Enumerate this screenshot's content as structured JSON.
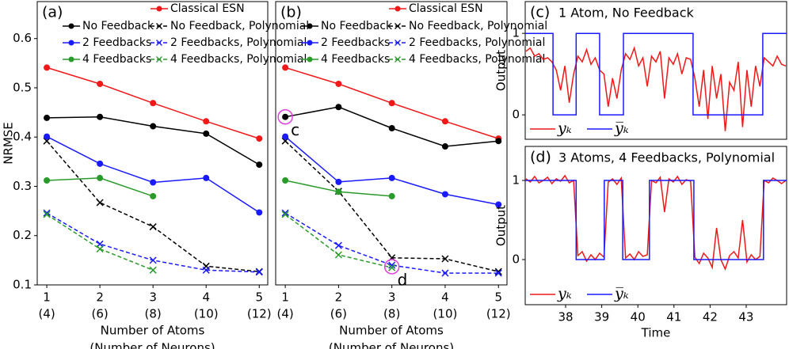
{
  "chart_data": [
    {
      "type": "line",
      "label": "(a)",
      "ylabel": "NRMSE",
      "xlabel": [
        "Number of Atoms",
        "(Number of Neurons)"
      ],
      "x": [
        1,
        2,
        3,
        4,
        5
      ],
      "xlim": [
        0.82,
        5.16
      ],
      "ylim": [
        0.1,
        0.675
      ],
      "xticks": [
        1,
        2,
        3,
        4,
        5
      ],
      "xtick_sublabels": [
        "(4)",
        "(6)",
        "(8)",
        "(10)",
        "(12)"
      ],
      "yticks": [
        0.1,
        0.2,
        0.3,
        0.4,
        0.5,
        0.6
      ],
      "legend": "top-two-column",
      "series": [
        {
          "name": "Classical ESN",
          "color": "#f01818",
          "dash": false,
          "marker": "o",
          "values": [
            0.541,
            0.508,
            0.469,
            0.432,
            0.397
          ]
        },
        {
          "name": "No Feedback",
          "color": "#000000",
          "dash": false,
          "marker": "o",
          "values": [
            0.439,
            0.441,
            0.422,
            0.407,
            0.344
          ]
        },
        {
          "name": "No Feedback, Polynomial",
          "color": "#000000",
          "dash": true,
          "marker": "x",
          "values": [
            0.392,
            0.267,
            0.218,
            0.138,
            0.127
          ]
        },
        {
          "name": "2 Feedbacks",
          "color": "#1a1aff",
          "dash": false,
          "marker": "o",
          "values": [
            0.401,
            0.346,
            0.308,
            0.317,
            0.247
          ]
        },
        {
          "name": "2 Feedbacks, Polynomial",
          "color": "#1a1aff",
          "dash": true,
          "marker": "x",
          "values": [
            0.246,
            0.183,
            0.15,
            0.13,
            0.126
          ]
        },
        {
          "name": "4 Feedbacks",
          "color": "#2a9a2a",
          "dash": false,
          "marker": "o",
          "values": [
            0.312,
            0.317,
            0.28,
            null,
            null
          ]
        },
        {
          "name": "4 Feedbacks, Polynomial",
          "color": "#2a9a2a",
          "dash": true,
          "marker": "x",
          "values": [
            0.243,
            0.173,
            0.13,
            null,
            null
          ]
        }
      ]
    },
    {
      "type": "line",
      "label": "(b)",
      "xlabel": [
        "Number of Atoms",
        "(Number of Neurons)"
      ],
      "x": [
        1,
        2,
        3,
        4,
        5
      ],
      "xlim": [
        0.82,
        5.16
      ],
      "ylim": [
        0.1,
        0.675
      ],
      "xticks": [
        1,
        2,
        3,
        4,
        5
      ],
      "xtick_sublabels": [
        "(4)",
        "(6)",
        "(8)",
        "(10)",
        "(12)"
      ],
      "legend": "top-two-column",
      "annotations": [
        {
          "text": "c",
          "x": 1,
          "y": 0.441,
          "color": "#e040e0"
        },
        {
          "text": "d",
          "x": 3,
          "y": 0.137,
          "color": "#e040e0"
        }
      ],
      "series": [
        {
          "name": "Classical ESN",
          "color": "#f01818",
          "dash": false,
          "marker": "o",
          "values": [
            0.541,
            0.508,
            0.469,
            0.432,
            0.397
          ]
        },
        {
          "name": "No Feedback",
          "color": "#000000",
          "dash": false,
          "marker": "o",
          "values": [
            0.441,
            0.461,
            0.418,
            0.381,
            0.392
          ]
        },
        {
          "name": "No Feedback, Polynomial",
          "color": "#000000",
          "dash": true,
          "marker": "x",
          "values": [
            0.392,
            0.29,
            0.155,
            0.153,
            0.127
          ]
        },
        {
          "name": "2 Feedbacks",
          "color": "#1a1aff",
          "dash": false,
          "marker": "o",
          "values": [
            0.401,
            0.309,
            0.317,
            0.284,
            0.263
          ]
        },
        {
          "name": "2 Feedbacks, Polynomial",
          "color": "#1a1aff",
          "dash": true,
          "marker": "x",
          "values": [
            0.246,
            0.18,
            0.14,
            0.124,
            0.124
          ]
        },
        {
          "name": "4 Feedbacks",
          "color": "#2a9a2a",
          "dash": false,
          "marker": "o",
          "values": [
            0.312,
            0.289,
            0.28,
            null,
            null
          ]
        },
        {
          "name": "4 Feedbacks, Polynomial",
          "color": "#2a9a2a",
          "dash": true,
          "marker": "x",
          "values": [
            0.243,
            0.161,
            0.135,
            null,
            null
          ]
        }
      ]
    },
    {
      "type": "line",
      "label": "(c)",
      "title": "1 Atom, No Feedback",
      "ylabel": "Output",
      "xlim": [
        36.88,
        44.12
      ],
      "ylim": [
        -0.3,
        1.39
      ],
      "yticks": [
        0,
        1
      ],
      "legend": "lower-left-row",
      "series": [
        {
          "name": "yₖ",
          "color": "#f01818",
          "dash": false,
          "x": [
            36.9,
            37.02,
            37.14,
            37.26,
            37.38,
            37.5,
            37.62,
            37.74,
            37.86,
            37.98,
            38.1,
            38.22,
            38.34,
            38.46,
            38.58,
            38.7,
            38.82,
            38.94,
            39.06,
            39.18,
            39.3,
            39.42,
            39.54,
            39.66,
            39.78,
            39.9,
            40.02,
            40.14,
            40.26,
            40.38,
            40.5,
            40.62,
            40.74,
            40.86,
            40.98,
            41.1,
            41.22,
            41.34,
            41.46,
            41.58,
            41.7,
            41.82,
            41.94,
            42.06,
            42.18,
            42.3,
            42.42,
            42.54,
            42.66,
            42.78,
            42.9,
            43.02,
            43.14,
            43.26,
            43.38,
            43.5,
            43.62,
            43.74,
            43.86,
            43.98,
            44.1
          ],
          "values": [
            0.78,
            0.82,
            0.72,
            0.75,
            0.68,
            0.7,
            0.65,
            0.55,
            0.3,
            0.6,
            0.15,
            0.5,
            0.72,
            0.65,
            0.8,
            0.62,
            0.7,
            0.55,
            0.5,
            0.1,
            0.45,
            0.2,
            0.55,
            0.75,
            0.68,
            0.82,
            0.6,
            0.7,
            0.35,
            0.72,
            0.65,
            0.78,
            0.2,
            0.7,
            0.62,
            0.75,
            0.5,
            0.7,
            0.68,
            0.45,
            0.1,
            0.55,
            -0.05,
            0.6,
            0.2,
            0.5,
            -0.2,
            0.4,
            0.3,
            0.65,
            -0.15,
            0.55,
            0.1,
            0.6,
            0.35,
            0.7,
            0.65,
            0.6,
            0.72,
            0.62,
            0.6
          ]
        },
        {
          "name": "y̅ₖ",
          "color": "#1a1aff",
          "dash": false,
          "x": [
            36.88,
            37.65,
            37.65,
            38.29,
            38.29,
            38.94,
            38.94,
            39.6,
            39.6,
            41.53,
            41.53,
            43.46,
            43.46,
            44.12
          ],
          "values": [
            1,
            1,
            0,
            0,
            1,
            1,
            0,
            0,
            1,
            1,
            0,
            0,
            1,
            1
          ]
        }
      ]
    },
    {
      "type": "line",
      "label": "(d)",
      "title": "3 Atoms, 4 Feedbacks, Polynomial",
      "ylabel": "Output",
      "xlabel": [
        "Time"
      ],
      "xlim": [
        36.88,
        44.12
      ],
      "ylim": [
        -0.57,
        1.43
      ],
      "yticks": [
        0,
        1
      ],
      "xticks": [
        38,
        39,
        40,
        41,
        42,
        43
      ],
      "legend": "lower-left-row",
      "series": [
        {
          "name": "yₖ",
          "color": "#f01818",
          "dash": false,
          "x": [
            36.9,
            37.02,
            37.14,
            37.26,
            37.38,
            37.5,
            37.62,
            37.74,
            37.86,
            37.98,
            38.1,
            38.22,
            38.34,
            38.46,
            38.58,
            38.7,
            38.82,
            38.94,
            39.06,
            39.18,
            39.3,
            39.42,
            39.54,
            39.66,
            39.78,
            39.9,
            40.02,
            40.14,
            40.26,
            40.38,
            40.5,
            40.62,
            40.74,
            40.86,
            40.98,
            41.1,
            41.22,
            41.34,
            41.46,
            41.58,
            41.7,
            41.82,
            41.94,
            42.06,
            42.18,
            42.3,
            42.42,
            42.54,
            42.66,
            42.78,
            42.9,
            43.02,
            43.14,
            43.26,
            43.38,
            43.5,
            43.62,
            43.74,
            43.86,
            43.98,
            44.1
          ],
          "values": [
            1.02,
            0.98,
            1.05,
            0.97,
            1.0,
            1.04,
            0.96,
            1.02,
            0.99,
            1.06,
            0.97,
            1.0,
            0.05,
            0.1,
            -0.02,
            0.06,
            0.0,
            0.08,
            0.03,
            0.98,
            1.02,
            0.95,
            1.03,
            0.02,
            0.07,
            0.0,
            0.1,
            0.04,
            0.06,
            1.0,
            0.97,
            1.04,
            0.6,
            1.02,
            0.98,
            1.05,
            0.95,
            1.01,
            0.99,
            0.03,
            -0.05,
            0.08,
            0.02,
            -0.1,
            0.4,
            0.0,
            -0.12,
            0.05,
            0.1,
            0.02,
            0.5,
            -0.03,
            0.06,
            0.0,
            0.04,
            1.0,
            0.97,
            1.03,
            1.0,
            0.96,
            1.0
          ]
        },
        {
          "name": "y̅ₖ",
          "color": "#1a1aff",
          "dash": false,
          "x": [
            36.88,
            38.29,
            38.29,
            39.07,
            39.07,
            39.58,
            39.58,
            40.32,
            40.32,
            41.55,
            41.55,
            43.48,
            43.48,
            44.12
          ],
          "values": [
            1,
            1,
            0,
            0,
            1,
            1,
            0,
            0,
            1,
            1,
            0,
            0,
            1,
            1
          ]
        }
      ]
    }
  ]
}
